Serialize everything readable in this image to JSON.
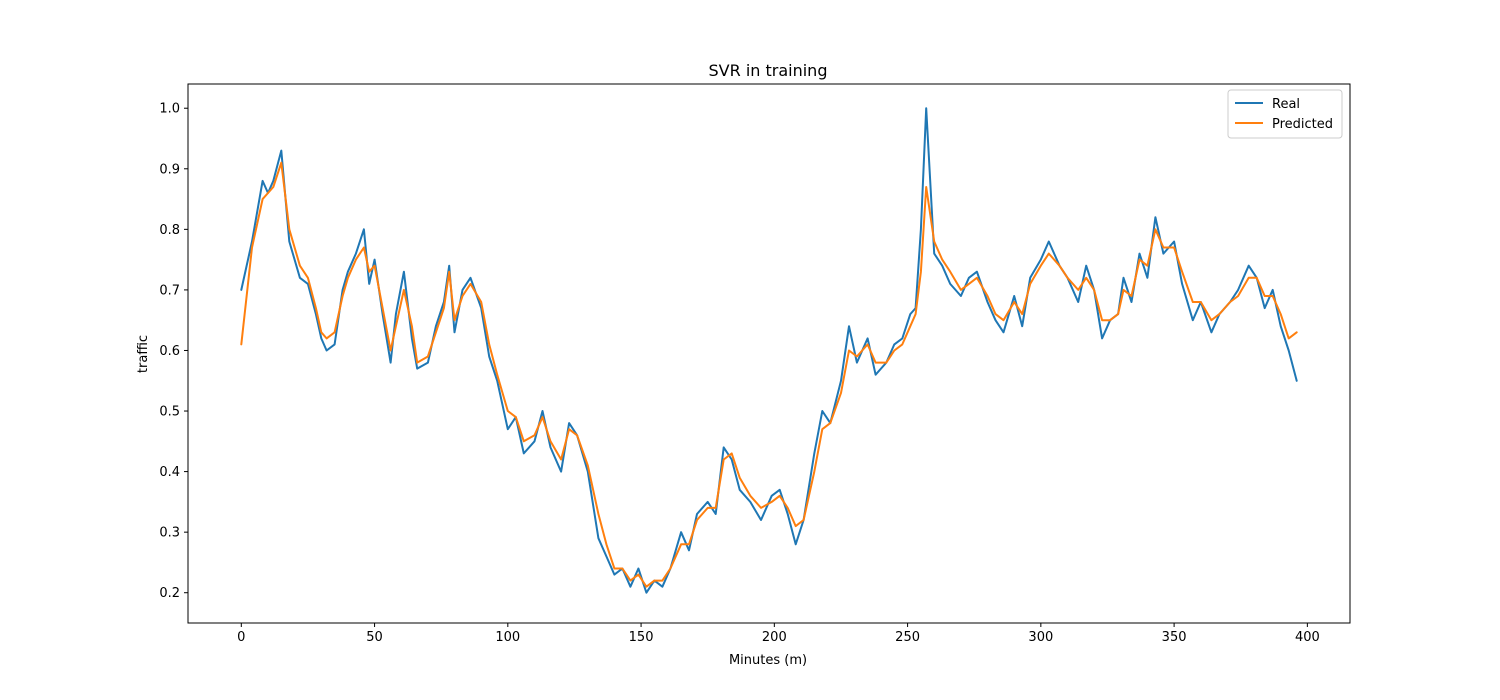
{
  "chart_data": {
    "type": "line",
    "title": "SVR in training",
    "xlabel": "Minutes (m)",
    "ylabel": "traffic",
    "xlim": [
      -20,
      416
    ],
    "ylim": [
      0.15,
      1.04
    ],
    "xticks": [
      "0",
      "50",
      "100",
      "150",
      "200",
      "250",
      "300",
      "350",
      "400"
    ],
    "xtick_values": [
      0,
      50,
      100,
      150,
      200,
      250,
      300,
      350,
      400
    ],
    "yticks": [
      "0.2",
      "0.3",
      "0.4",
      "0.5",
      "0.6",
      "0.7",
      "0.8",
      "0.9",
      "1.0"
    ],
    "ytick_values": [
      0.2,
      0.3,
      0.4,
      0.5,
      0.6,
      0.7,
      0.8,
      0.9,
      1.0
    ],
    "grid": false,
    "legend_position": "top-right",
    "x": [
      0,
      4,
      8,
      10,
      12,
      15,
      18,
      22,
      25,
      28,
      30,
      32,
      35,
      38,
      40,
      43,
      46,
      48,
      50,
      53,
      56,
      58,
      61,
      64,
      66,
      70,
      73,
      76,
      78,
      80,
      83,
      86,
      90,
      93,
      96,
      100,
      103,
      106,
      110,
      113,
      116,
      120,
      123,
      126,
      130,
      134,
      137,
      140,
      143,
      146,
      149,
      152,
      155,
      158,
      161,
      165,
      168,
      171,
      175,
      178,
      181,
      184,
      187,
      191,
      195,
      199,
      202,
      205,
      208,
      211,
      215,
      218,
      221,
      225,
      228,
      231,
      235,
      238,
      242,
      245,
      248,
      251,
      253,
      255,
      257,
      260,
      263,
      266,
      270,
      273,
      276,
      280,
      283,
      286,
      290,
      293,
      296,
      300,
      303,
      307,
      310,
      314,
      317,
      320,
      323,
      326,
      329,
      331,
      334,
      337,
      340,
      343,
      346,
      350,
      353,
      357,
      360,
      364,
      367,
      371,
      374,
      378,
      381,
      384,
      387,
      390,
      393,
      396
    ],
    "series": [
      {
        "name": "Real",
        "color": "#1f77b4",
        "values": [
          0.7,
          0.78,
          0.88,
          0.86,
          0.88,
          0.93,
          0.78,
          0.72,
          0.71,
          0.66,
          0.62,
          0.6,
          0.61,
          0.7,
          0.73,
          0.76,
          0.8,
          0.71,
          0.75,
          0.66,
          0.58,
          0.66,
          0.73,
          0.62,
          0.57,
          0.58,
          0.64,
          0.68,
          0.74,
          0.63,
          0.7,
          0.72,
          0.67,
          0.59,
          0.55,
          0.47,
          0.49,
          0.43,
          0.45,
          0.5,
          0.44,
          0.4,
          0.48,
          0.46,
          0.4,
          0.29,
          0.26,
          0.23,
          0.24,
          0.21,
          0.24,
          0.2,
          0.22,
          0.21,
          0.24,
          0.3,
          0.27,
          0.33,
          0.35,
          0.33,
          0.44,
          0.42,
          0.37,
          0.35,
          0.32,
          0.36,
          0.37,
          0.33,
          0.28,
          0.32,
          0.43,
          0.5,
          0.48,
          0.55,
          0.64,
          0.58,
          0.62,
          0.56,
          0.58,
          0.61,
          0.62,
          0.66,
          0.67,
          0.8,
          1.0,
          0.76,
          0.74,
          0.71,
          0.69,
          0.72,
          0.73,
          0.68,
          0.65,
          0.63,
          0.69,
          0.64,
          0.72,
          0.75,
          0.78,
          0.74,
          0.72,
          0.68,
          0.74,
          0.7,
          0.62,
          0.65,
          0.66,
          0.72,
          0.68,
          0.76,
          0.72,
          0.82,
          0.76,
          0.78,
          0.71,
          0.65,
          0.68,
          0.63,
          0.66,
          0.68,
          0.7,
          0.74,
          0.72,
          0.67,
          0.7,
          0.64,
          0.6,
          0.55
        ]
      },
      {
        "name": "Predicted",
        "color": "#ff7f0e",
        "values": [
          0.61,
          0.77,
          0.85,
          0.86,
          0.87,
          0.91,
          0.8,
          0.74,
          0.72,
          0.67,
          0.63,
          0.62,
          0.63,
          0.69,
          0.72,
          0.75,
          0.77,
          0.73,
          0.74,
          0.67,
          0.6,
          0.64,
          0.7,
          0.64,
          0.58,
          0.59,
          0.63,
          0.67,
          0.73,
          0.65,
          0.69,
          0.71,
          0.68,
          0.61,
          0.56,
          0.5,
          0.49,
          0.45,
          0.46,
          0.49,
          0.45,
          0.42,
          0.47,
          0.46,
          0.41,
          0.33,
          0.28,
          0.24,
          0.24,
          0.22,
          0.23,
          0.21,
          0.22,
          0.22,
          0.24,
          0.28,
          0.28,
          0.32,
          0.34,
          0.34,
          0.42,
          0.43,
          0.39,
          0.36,
          0.34,
          0.35,
          0.36,
          0.34,
          0.31,
          0.32,
          0.4,
          0.47,
          0.48,
          0.53,
          0.6,
          0.59,
          0.61,
          0.58,
          0.58,
          0.6,
          0.61,
          0.64,
          0.66,
          0.73,
          0.87,
          0.78,
          0.75,
          0.73,
          0.7,
          0.71,
          0.72,
          0.69,
          0.66,
          0.65,
          0.68,
          0.66,
          0.71,
          0.74,
          0.76,
          0.74,
          0.72,
          0.7,
          0.72,
          0.7,
          0.65,
          0.65,
          0.66,
          0.7,
          0.69,
          0.75,
          0.74,
          0.8,
          0.77,
          0.77,
          0.73,
          0.68,
          0.68,
          0.65,
          0.66,
          0.68,
          0.69,
          0.72,
          0.72,
          0.69,
          0.69,
          0.66,
          0.62,
          0.63
        ]
      }
    ]
  }
}
